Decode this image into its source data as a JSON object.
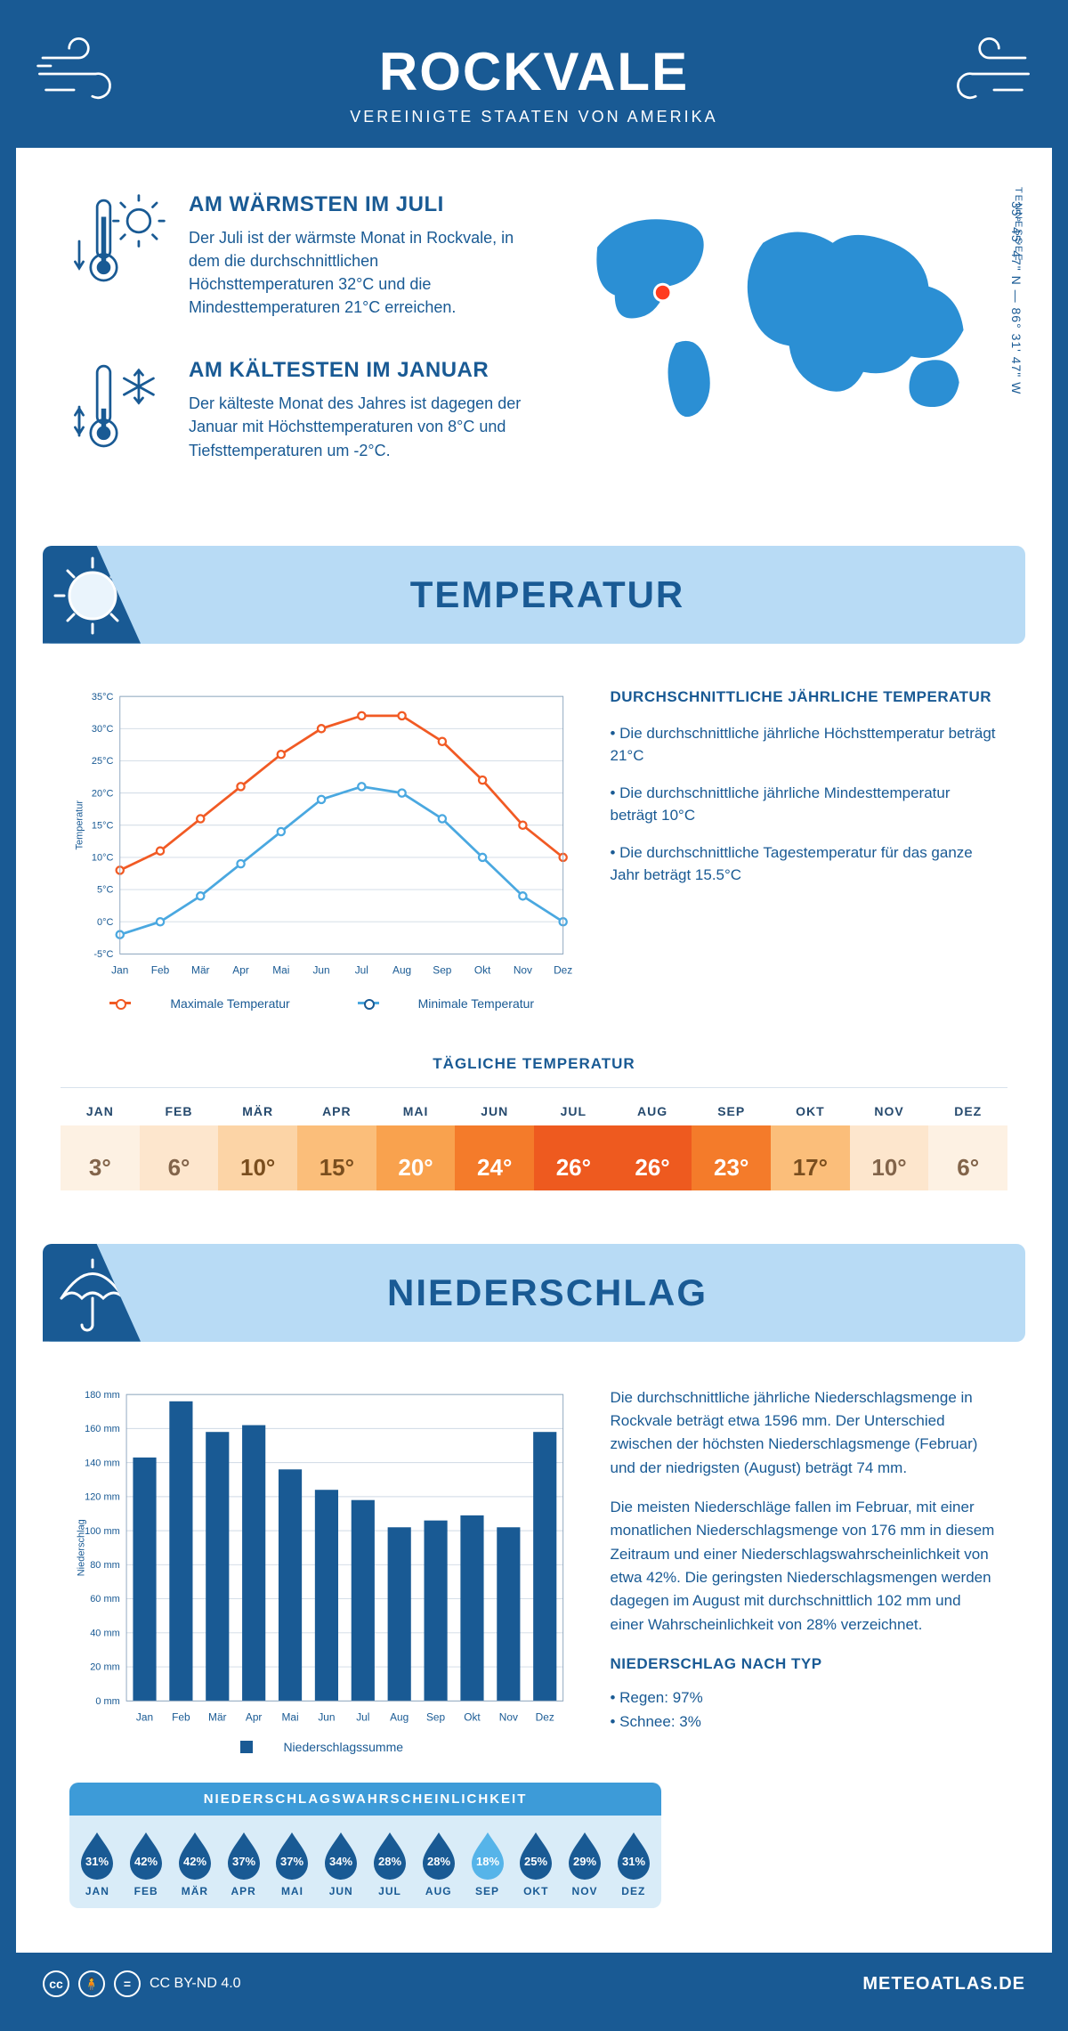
{
  "header": {
    "title": "ROCKVALE",
    "subtitle": "VEREINIGTE STAATEN VON AMERIKA",
    "primary_color": "#195a94",
    "banner_bg": "#b8dbf5"
  },
  "location": {
    "state": "TENNESSEE",
    "coords": "35° 45' 47\" N — 86° 31' 47\" W"
  },
  "facts": {
    "warm": {
      "title": "AM WÄRMSTEN IM JULI",
      "text": "Der Juli ist der wärmste Monat in Rockvale, in dem die durchschnittlichen Höchsttemperaturen 32°C und die Mindesttemperaturen 21°C erreichen."
    },
    "cold": {
      "title": "AM KÄLTESTEN IM JANUAR",
      "text": "Der kälteste Monat des Jahres ist dagegen der Januar mit Höchsttemperaturen von 8°C und Tiefsttemperaturen um -2°C."
    }
  },
  "sections": {
    "temp_title": "TEMPERATUR",
    "precip_title": "NIEDERSCHLAG"
  },
  "temp_chart": {
    "type": "line",
    "months": [
      "Jan",
      "Feb",
      "Mär",
      "Apr",
      "Mai",
      "Jun",
      "Jul",
      "Aug",
      "Sep",
      "Okt",
      "Nov",
      "Dez"
    ],
    "ylabel": "Temperatur",
    "ylim": [
      -5,
      35
    ],
    "ytick_step": 5,
    "ytick_suffix": "°C",
    "grid_color": "#cfd9e4",
    "series": {
      "max": {
        "label": "Maximale Temperatur",
        "color": "#f15a24",
        "values": [
          8,
          11,
          16,
          21,
          26,
          30,
          32,
          32,
          28,
          22,
          15,
          10
        ]
      },
      "min": {
        "label": "Minimale Temperatur",
        "color": "#4aa8e0",
        "values": [
          -2,
          0,
          4,
          9,
          14,
          19,
          21,
          20,
          16,
          10,
          4,
          0
        ]
      }
    }
  },
  "temp_avg": {
    "title": "DURCHSCHNITTLICHE JÄHRLICHE TEMPERATUR",
    "bullets": [
      "Die durchschnittliche jährliche Höchsttemperatur beträgt 21°C",
      "Die durchschnittliche jährliche Mindesttemperatur beträgt 10°C",
      "Die durchschnittliche Tagestemperatur für das ganze Jahr beträgt 15.5°C"
    ]
  },
  "daily_temp": {
    "title": "TÄGLICHE TEMPERATUR",
    "months": [
      "JAN",
      "FEB",
      "MÄR",
      "APR",
      "MAI",
      "JUN",
      "JUL",
      "AUG",
      "SEP",
      "OKT",
      "NOV",
      "DEZ"
    ],
    "values": [
      "3°",
      "6°",
      "10°",
      "15°",
      "20°",
      "24°",
      "26°",
      "26°",
      "23°",
      "17°",
      "10°",
      "6°"
    ],
    "bg_colors": [
      "#fdf1e3",
      "#fde6cd",
      "#fcd4a6",
      "#fbbe7a",
      "#f9a24e",
      "#f47b2a",
      "#ee5a1f",
      "#ee5a1f",
      "#f47b2a",
      "#fbbe7a",
      "#fde6cd",
      "#fdf1e3"
    ],
    "text_colors": [
      "#82644a",
      "#82644a",
      "#7a4e1e",
      "#7a4e1e",
      "#ffffff",
      "#ffffff",
      "#ffffff",
      "#ffffff",
      "#ffffff",
      "#7a4e1e",
      "#82644a",
      "#82644a"
    ]
  },
  "precip_chart": {
    "type": "bar",
    "months": [
      "Jan",
      "Feb",
      "Mär",
      "Apr",
      "Mai",
      "Jun",
      "Jul",
      "Aug",
      "Sep",
      "Okt",
      "Nov",
      "Dez"
    ],
    "values": [
      143,
      176,
      158,
      162,
      136,
      124,
      118,
      102,
      106,
      109,
      102,
      158
    ],
    "ylabel": "Niederschlag",
    "legend": "Niederschlagssumme",
    "ylim": [
      0,
      180
    ],
    "ytick_step": 20,
    "ytick_suffix": " mm",
    "bar_color": "#195a94",
    "grid_color": "#cfd9e4"
  },
  "precip_text": {
    "p1": "Die durchschnittliche jährliche Niederschlagsmenge in Rockvale beträgt etwa 1596 mm. Der Unterschied zwischen der höchsten Niederschlagsmenge (Februar) und der niedrigsten (August) beträgt 74 mm.",
    "p2": "Die meisten Niederschläge fallen im Februar, mit einer monatlichen Niederschlagsmenge von 176 mm in diesem Zeitraum und einer Niederschlagswahrscheinlichkeit von etwa 42%. Die geringsten Niederschlagsmengen werden dagegen im August mit durchschnittlich 102 mm und einer Wahrscheinlichkeit von 28% verzeichnet.",
    "type_title": "NIEDERSCHLAG NACH TYP",
    "types": [
      "Regen: 97%",
      "Schnee: 3%"
    ]
  },
  "precip_prob": {
    "title": "NIEDERSCHLAGSWAHRSCHEINLICHKEIT",
    "months": [
      "JAN",
      "FEB",
      "MÄR",
      "APR",
      "MAI",
      "JUN",
      "JUL",
      "AUG",
      "SEP",
      "OKT",
      "NOV",
      "DEZ"
    ],
    "values": [
      "31%",
      "42%",
      "42%",
      "37%",
      "37%",
      "34%",
      "28%",
      "28%",
      "18%",
      "25%",
      "29%",
      "31%"
    ],
    "drop_dark": "#195a94",
    "drop_light": "#56b4e9",
    "light_index": 8
  },
  "footer": {
    "license": "CC BY-ND 4.0",
    "brand": "METEOATLAS.DE"
  }
}
